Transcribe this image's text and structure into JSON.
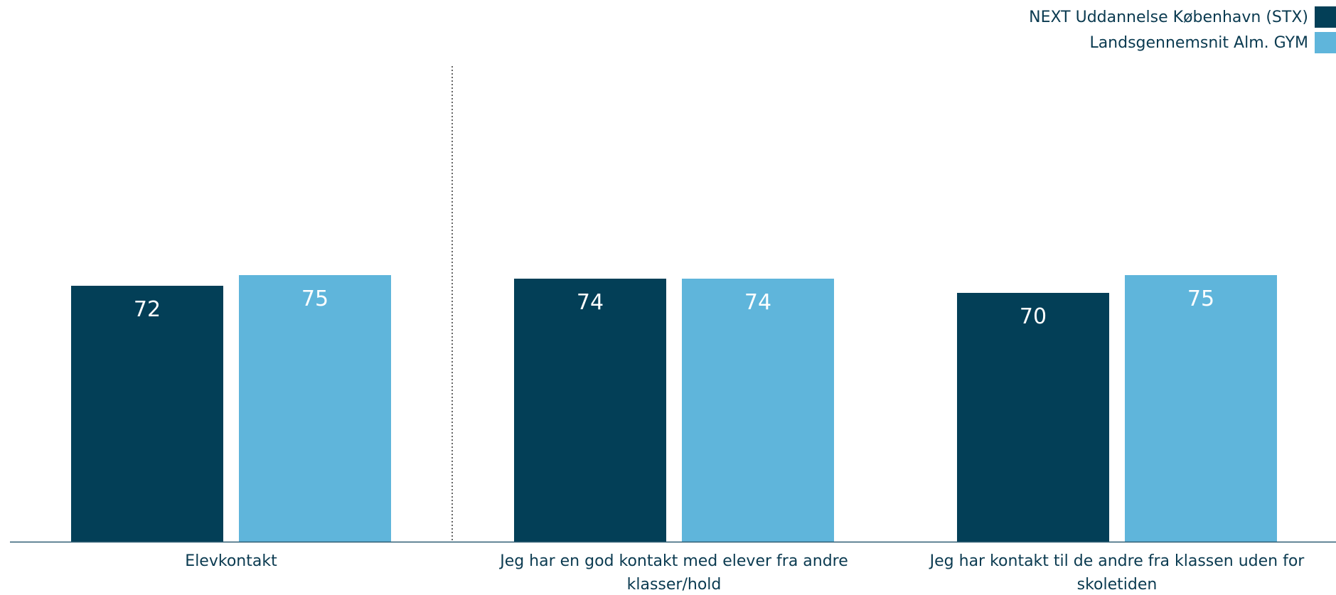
{
  "colors": {
    "series_dark": "#033f57",
    "series_light": "#5fb5db",
    "text": "#0a3a50",
    "axis": "#2f5d73",
    "value_label": "#ffffff"
  },
  "legend": {
    "items": [
      {
        "label": "NEXT Uddannelse København (STX)",
        "color": "#033f57"
      },
      {
        "label": "Landsgennemsnit Alm. GYM",
        "color": "#5fb5db"
      }
    ]
  },
  "chart_data": {
    "type": "bar",
    "categories": [
      [
        "Elevkontakt"
      ],
      [
        "Jeg har en god kontakt med elever fra andre",
        "klasser/hold"
      ],
      [
        "Jeg har kontakt til de andre fra klassen uden for",
        "skoletiden"
      ]
    ],
    "series": [
      {
        "name": "NEXT Uddannelse København (STX)",
        "values": [
          72,
          74,
          70
        ]
      },
      {
        "name": "Landsgennemsnit Alm. GYM",
        "values": [
          75,
          74,
          75
        ]
      }
    ],
    "ylim": [
      0,
      100
    ],
    "grid": false,
    "legend_position": "top-right",
    "separator_after_category": 1
  }
}
